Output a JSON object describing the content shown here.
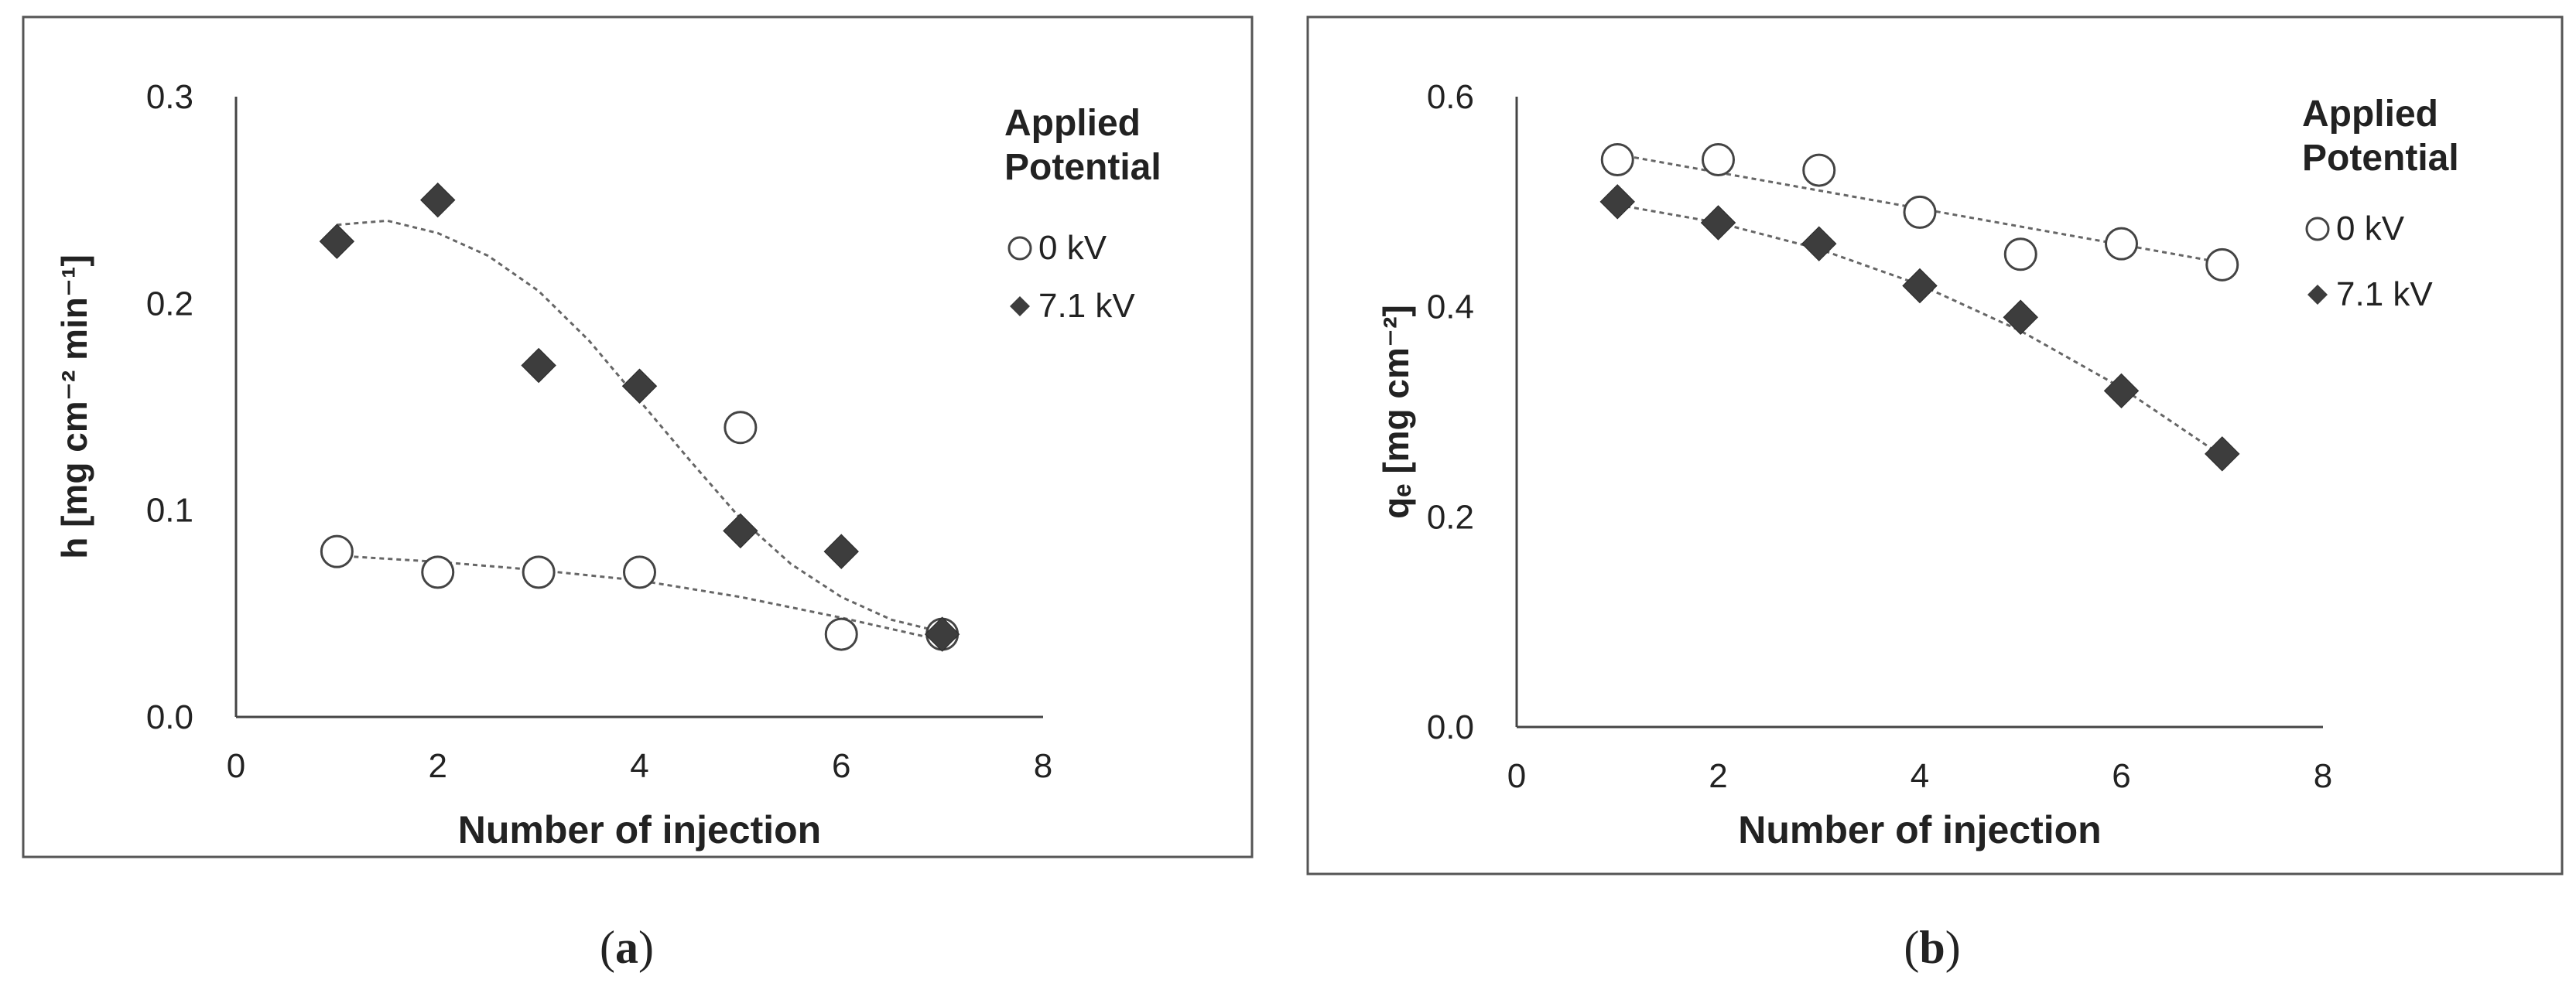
{
  "chart_data": [
    {
      "type": "scatter",
      "panel_label": "a",
      "xlabel": "Number of injection",
      "ylabel": "h [mg cm⁻² min⁻¹]",
      "xlim": [
        0,
        8
      ],
      "ylim": [
        0.0,
        0.3
      ],
      "xticks": [
        "0",
        "2",
        "4",
        "6",
        "8"
      ],
      "yticks": [
        "0.0",
        "0.1",
        "0.2",
        "0.3"
      ],
      "legend_title": [
        "Applied",
        "Potential"
      ],
      "legend_position": "top-right",
      "grid": false,
      "series": [
        {
          "name": "0 kV",
          "marker": "open-circle",
          "x": [
            1,
            2,
            3,
            4,
            5,
            6,
            7
          ],
          "y": [
            0.08,
            0.07,
            0.07,
            0.07,
            0.14,
            0.04,
            0.04
          ],
          "trend": [
            [
              1,
              0.078
            ],
            [
              2,
              0.075
            ],
            [
              3,
              0.071
            ],
            [
              4,
              0.066
            ],
            [
              5,
              0.058
            ],
            [
              6,
              0.048
            ],
            [
              7,
              0.037
            ]
          ]
        },
        {
          "name": "7.1 kV",
          "marker": "filled-diamond",
          "x": [
            1,
            2,
            3,
            4,
            5,
            6,
            7
          ],
          "y": [
            0.23,
            0.25,
            0.17,
            0.16,
            0.09,
            0.08,
            0.04
          ],
          "trend": [
            [
              1,
              0.238
            ],
            [
              1.5,
              0.24
            ],
            [
              2,
              0.234
            ],
            [
              2.5,
              0.223
            ],
            [
              3,
              0.206
            ],
            [
              3.5,
              0.182
            ],
            [
              4,
              0.153
            ],
            [
              4.5,
              0.124
            ],
            [
              5,
              0.096
            ],
            [
              5.5,
              0.074
            ],
            [
              6,
              0.058
            ],
            [
              6.5,
              0.047
            ],
            [
              7,
              0.041
            ]
          ]
        }
      ]
    },
    {
      "type": "scatter",
      "panel_label": "b",
      "xlabel": "Number of injection",
      "ylabel": "qₑ [mg cm⁻²]",
      "xlim": [
        0,
        8
      ],
      "ylim": [
        0.0,
        0.6
      ],
      "xticks": [
        "0",
        "2",
        "4",
        "6",
        "8"
      ],
      "yticks": [
        "0.0",
        "0.2",
        "0.4",
        "0.6"
      ],
      "legend_title": [
        "Applied",
        "Potential"
      ],
      "legend_position": "top-right",
      "grid": false,
      "series": [
        {
          "name": "0 kV",
          "marker": "open-circle",
          "x": [
            1,
            2,
            3,
            4,
            5,
            6,
            7
          ],
          "y": [
            0.54,
            0.54,
            0.53,
            0.49,
            0.45,
            0.46,
            0.44
          ],
          "trend": [
            [
              1,
              0.545
            ],
            [
              7,
              0.442
            ]
          ]
        },
        {
          "name": "7.1 kV",
          "marker": "filled-diamond",
          "x": [
            1,
            2,
            3,
            4,
            5,
            6,
            7
          ],
          "y": [
            0.5,
            0.48,
            0.46,
            0.42,
            0.39,
            0.32,
            0.26
          ],
          "trend": [
            [
              1,
              0.497
            ],
            [
              2,
              0.48
            ],
            [
              3,
              0.455
            ],
            [
              4,
              0.421
            ],
            [
              5,
              0.377
            ],
            [
              6,
              0.323
            ],
            [
              7,
              0.258
            ]
          ]
        }
      ]
    }
  ],
  "colors": {
    "frame": "#555555",
    "axis": "#444444",
    "text": "#222222",
    "marker_fill": "#3d3d3d",
    "open_marker": "#444444",
    "trend": "#666666"
  }
}
